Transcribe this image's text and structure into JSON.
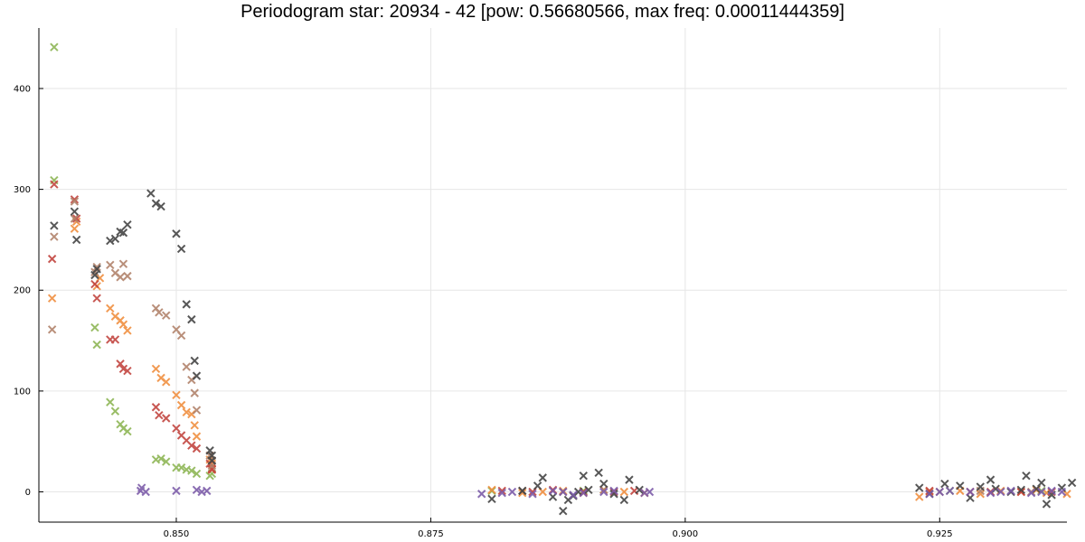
{
  "chart_data": {
    "type": "scatter",
    "title": "Periodogram star: 20934 - 42 [pow: 0.56680566, max freq: 0.00011444359]",
    "xlabel": "",
    "ylabel": "",
    "xlim": [
      0.8365,
      0.9375
    ],
    "ylim": [
      -30,
      460
    ],
    "grid": true,
    "marker": "x",
    "x_ticks": [
      {
        "value": 0.85,
        "label": "0.850"
      },
      {
        "value": 0.875,
        "label": "0.875"
      },
      {
        "value": 0.9,
        "label": "0.900"
      },
      {
        "value": 0.925,
        "label": "0.925"
      }
    ],
    "y_ticks": [
      {
        "value": 0,
        "label": "0"
      },
      {
        "value": 100,
        "label": "100"
      },
      {
        "value": 200,
        "label": "200"
      },
      {
        "value": 300,
        "label": "300"
      },
      {
        "value": 400,
        "label": "400"
      }
    ],
    "series": [
      {
        "color": "#8bb452",
        "points": [
          [
            0.838,
            441
          ],
          [
            0.838,
            309
          ],
          [
            0.842,
            163
          ],
          [
            0.8422,
            146
          ],
          [
            0.8435,
            89
          ],
          [
            0.844,
            80
          ],
          [
            0.8445,
            67
          ],
          [
            0.8448,
            63
          ],
          [
            0.8452,
            60
          ],
          [
            0.848,
            32
          ],
          [
            0.8485,
            33
          ],
          [
            0.849,
            30
          ],
          [
            0.85,
            24
          ],
          [
            0.8505,
            24
          ],
          [
            0.851,
            22
          ],
          [
            0.8515,
            21
          ],
          [
            0.852,
            18
          ],
          [
            0.8533,
            16
          ],
          [
            0.8535,
            18
          ],
          [
            0.881,
            1
          ],
          [
            0.89,
            1
          ],
          [
            0.926,
            1
          ],
          [
            0.935,
            1
          ]
        ]
      },
      {
        "color": "#f08d3c",
        "points": [
          [
            0.8378,
            192
          ],
          [
            0.84,
            261
          ],
          [
            0.8402,
            268
          ],
          [
            0.8422,
            204
          ],
          [
            0.8425,
            212
          ],
          [
            0.8435,
            182
          ],
          [
            0.844,
            174
          ],
          [
            0.8445,
            170
          ],
          [
            0.8448,
            166
          ],
          [
            0.8452,
            160
          ],
          [
            0.848,
            122
          ],
          [
            0.8485,
            113
          ],
          [
            0.849,
            109
          ],
          [
            0.85,
            96
          ],
          [
            0.8505,
            86
          ],
          [
            0.851,
            79
          ],
          [
            0.8515,
            77
          ],
          [
            0.8518,
            66
          ],
          [
            0.852,
            55
          ],
          [
            0.8533,
            32
          ],
          [
            0.8535,
            28
          ],
          [
            0.8535,
            22
          ],
          [
            0.881,
            2
          ],
          [
            0.884,
            -1
          ],
          [
            0.886,
            0
          ],
          [
            0.888,
            1
          ],
          [
            0.89,
            -1
          ],
          [
            0.892,
            2
          ],
          [
            0.894,
            0
          ],
          [
            0.896,
            -1
          ],
          [
            0.923,
            -5
          ],
          [
            0.924,
            0
          ],
          [
            0.927,
            1
          ],
          [
            0.929,
            -2
          ],
          [
            0.931,
            1
          ],
          [
            0.933,
            0
          ],
          [
            0.9345,
            2
          ],
          [
            0.9355,
            -1
          ],
          [
            0.9375,
            -2
          ]
        ]
      },
      {
        "color": "#c1413c",
        "points": [
          [
            0.8378,
            231
          ],
          [
            0.838,
            305
          ],
          [
            0.84,
            290
          ],
          [
            0.8402,
            271
          ],
          [
            0.842,
            206
          ],
          [
            0.8422,
            192
          ],
          [
            0.8435,
            151
          ],
          [
            0.844,
            151
          ],
          [
            0.8445,
            127
          ],
          [
            0.8448,
            122
          ],
          [
            0.8452,
            120
          ],
          [
            0.848,
            84
          ],
          [
            0.8483,
            76
          ],
          [
            0.849,
            73
          ],
          [
            0.85,
            63
          ],
          [
            0.8505,
            56
          ],
          [
            0.851,
            51
          ],
          [
            0.8515,
            46
          ],
          [
            0.852,
            43
          ],
          [
            0.8533,
            28
          ],
          [
            0.8535,
            23
          ],
          [
            0.8535,
            22
          ],
          [
            0.882,
            1
          ],
          [
            0.885,
            0
          ],
          [
            0.887,
            2
          ],
          [
            0.89,
            0
          ],
          [
            0.893,
            0
          ],
          [
            0.895,
            1
          ],
          [
            0.924,
            1
          ],
          [
            0.928,
            0
          ],
          [
            0.93,
            0
          ],
          [
            0.933,
            0
          ],
          [
            0.936,
            0
          ]
        ]
      },
      {
        "color": "#b08068",
        "points": [
          [
            0.8378,
            161
          ],
          [
            0.838,
            253
          ],
          [
            0.84,
            288
          ],
          [
            0.84,
            271
          ],
          [
            0.842,
            218
          ],
          [
            0.8422,
            223
          ],
          [
            0.8435,
            225
          ],
          [
            0.844,
            217
          ],
          [
            0.8445,
            213
          ],
          [
            0.8448,
            226
          ],
          [
            0.8452,
            214
          ],
          [
            0.848,
            182
          ],
          [
            0.8483,
            178
          ],
          [
            0.849,
            175
          ],
          [
            0.85,
            161
          ],
          [
            0.8505,
            155
          ],
          [
            0.851,
            124
          ],
          [
            0.8515,
            111
          ],
          [
            0.8518,
            98
          ],
          [
            0.852,
            81
          ],
          [
            0.8533,
            36
          ],
          [
            0.8535,
            31
          ],
          [
            0.8535,
            26
          ],
          [
            0.884,
            1
          ],
          [
            0.888,
            0
          ],
          [
            0.892,
            2
          ],
          [
            0.925,
            0
          ],
          [
            0.929,
            1
          ],
          [
            0.934,
            0
          ]
        ]
      },
      {
        "color": "#404040",
        "points": [
          [
            0.838,
            264
          ],
          [
            0.84,
            278
          ],
          [
            0.8402,
            250
          ],
          [
            0.842,
            215
          ],
          [
            0.8422,
            221
          ],
          [
            0.8435,
            249
          ],
          [
            0.844,
            251
          ],
          [
            0.8445,
            258
          ],
          [
            0.8448,
            257
          ],
          [
            0.8452,
            265
          ],
          [
            0.8475,
            296
          ],
          [
            0.848,
            286
          ],
          [
            0.8485,
            283
          ],
          [
            0.85,
            256
          ],
          [
            0.8505,
            241
          ],
          [
            0.851,
            186
          ],
          [
            0.8515,
            171
          ],
          [
            0.8518,
            130
          ],
          [
            0.852,
            115
          ],
          [
            0.8533,
            41
          ],
          [
            0.8535,
            36
          ],
          [
            0.8535,
            31
          ],
          [
            0.881,
            -7
          ],
          [
            0.884,
            1
          ],
          [
            0.8855,
            6
          ],
          [
            0.886,
            14
          ],
          [
            0.887,
            -5
          ],
          [
            0.888,
            -19
          ],
          [
            0.8885,
            -8
          ],
          [
            0.889,
            -4
          ],
          [
            0.8895,
            0
          ],
          [
            0.89,
            16
          ],
          [
            0.8905,
            2
          ],
          [
            0.8915,
            19
          ],
          [
            0.892,
            8
          ],
          [
            0.893,
            -2
          ],
          [
            0.894,
            -8
          ],
          [
            0.8945,
            12
          ],
          [
            0.8955,
            2
          ],
          [
            0.923,
            4
          ],
          [
            0.924,
            -2
          ],
          [
            0.9255,
            8
          ],
          [
            0.927,
            6
          ],
          [
            0.928,
            -6
          ],
          [
            0.929,
            5
          ],
          [
            0.93,
            12
          ],
          [
            0.9305,
            3
          ],
          [
            0.932,
            0
          ],
          [
            0.933,
            2
          ],
          [
            0.9335,
            16
          ],
          [
            0.9345,
            3
          ],
          [
            0.935,
            9
          ],
          [
            0.9355,
            -12
          ],
          [
            0.936,
            -3
          ],
          [
            0.937,
            4
          ],
          [
            0.938,
            9
          ]
        ]
      },
      {
        "color": "#7a5aa8",
        "points": [
          [
            0.8465,
            1
          ],
          [
            0.8466,
            4
          ],
          [
            0.847,
            0
          ],
          [
            0.85,
            1
          ],
          [
            0.852,
            2
          ],
          [
            0.8525,
            0
          ],
          [
            0.853,
            1
          ],
          [
            0.88,
            -2
          ],
          [
            0.882,
            -1
          ],
          [
            0.883,
            0
          ],
          [
            0.885,
            -2
          ],
          [
            0.887,
            1
          ],
          [
            0.888,
            0
          ],
          [
            0.889,
            -3
          ],
          [
            0.89,
            -1
          ],
          [
            0.892,
            0
          ],
          [
            0.893,
            1
          ],
          [
            0.896,
            -1
          ],
          [
            0.8965,
            0
          ],
          [
            0.924,
            -2
          ],
          [
            0.925,
            0
          ],
          [
            0.926,
            1
          ],
          [
            0.928,
            0
          ],
          [
            0.93,
            -1
          ],
          [
            0.931,
            0
          ],
          [
            0.932,
            1
          ],
          [
            0.934,
            -1
          ],
          [
            0.935,
            0
          ],
          [
            0.936,
            1
          ],
          [
            0.937,
            0
          ]
        ]
      }
    ]
  }
}
